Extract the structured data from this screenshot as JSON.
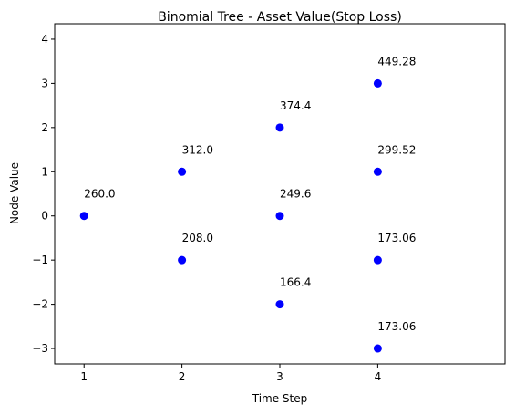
{
  "chart_data": {
    "type": "scatter",
    "title": "Binomial Tree - Asset Value(Stop Loss)",
    "xlabel": "Time Step",
    "ylabel": "Node Value",
    "xlim": [
      0.7,
      5.3
    ],
    "ylim": [
      -3.35,
      4.35
    ],
    "x_ticks": [
      1,
      2,
      3,
      4
    ],
    "x_tick_labels": [
      "1",
      "2",
      "3",
      "4"
    ],
    "y_ticks": [
      -3,
      -2,
      -1,
      0,
      1,
      2,
      3,
      4
    ],
    "y_tick_labels": [
      "−3",
      "−2",
      "−1",
      "0",
      "1",
      "2",
      "3",
      "4"
    ],
    "grid": false,
    "marker_color": "#0000ff",
    "points": [
      {
        "x": 1,
        "y": 0,
        "label": "260.0"
      },
      {
        "x": 2,
        "y": 1,
        "label": "312.0"
      },
      {
        "x": 2,
        "y": -1,
        "label": "208.0"
      },
      {
        "x": 3,
        "y": 2,
        "label": "374.4"
      },
      {
        "x": 3,
        "y": 0,
        "label": "249.6"
      },
      {
        "x": 3,
        "y": -2,
        "label": "166.4"
      },
      {
        "x": 4,
        "y": 3,
        "label": "449.28"
      },
      {
        "x": 4,
        "y": 1,
        "label": "299.52"
      },
      {
        "x": 4,
        "y": -1,
        "label": "173.06"
      },
      {
        "x": 4,
        "y": -3,
        "label": "173.06"
      }
    ]
  }
}
